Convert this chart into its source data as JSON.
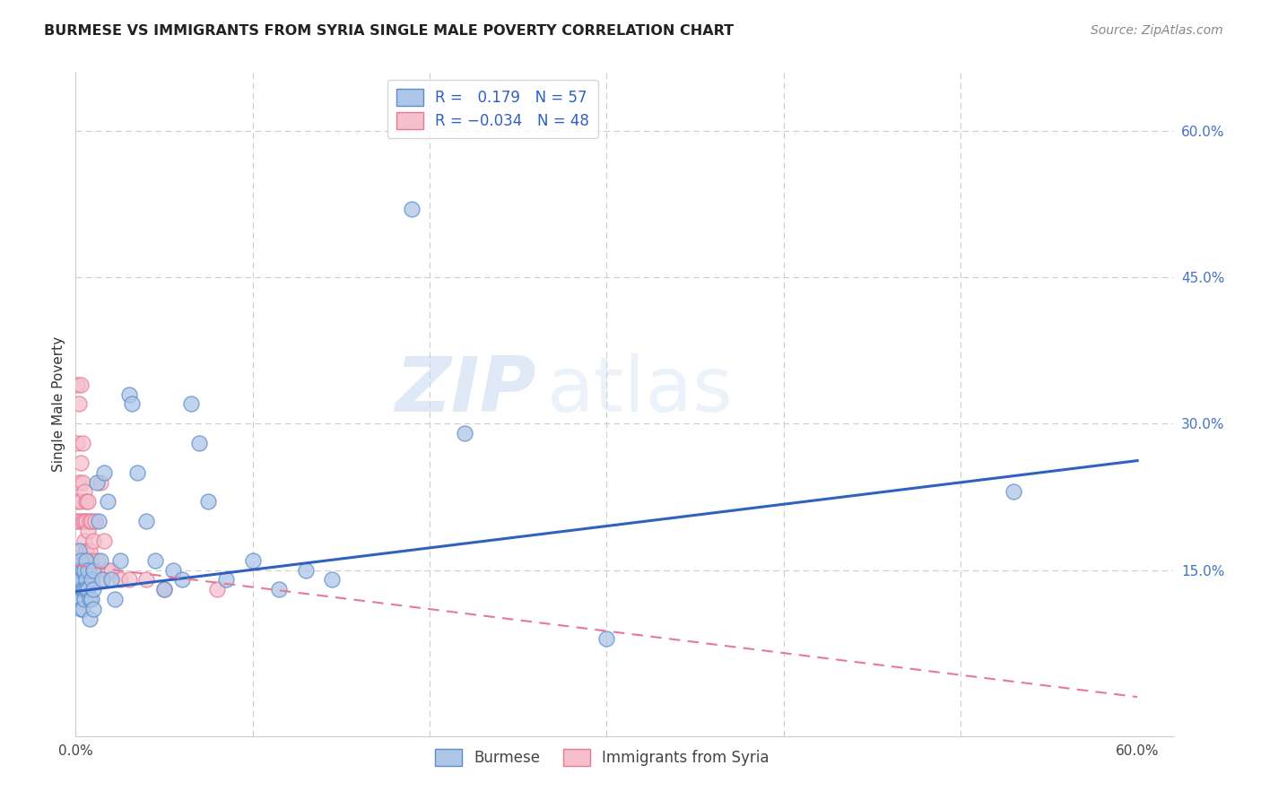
{
  "title": "BURMESE VS IMMIGRANTS FROM SYRIA SINGLE MALE POVERTY CORRELATION CHART",
  "source": "Source: ZipAtlas.com",
  "ylabel": "Single Male Poverty",
  "xlim": [
    0.0,
    0.62
  ],
  "ylim": [
    -0.02,
    0.66
  ],
  "yticks_right": [
    0.15,
    0.3,
    0.45,
    0.6
  ],
  "ytick_right_labels": [
    "15.0%",
    "30.0%",
    "45.0%",
    "60.0%"
  ],
  "burmese_color": "#aec6e8",
  "burmese_edge_color": "#5b8dc8",
  "syria_color": "#f5c0cc",
  "syria_edge_color": "#e87898",
  "burmese_line_color": "#3060c0",
  "syria_line_color": "#e87898",
  "R_burmese": 0.179,
  "N_burmese": 57,
  "R_syria": -0.034,
  "N_syria": 48,
  "legend_label_1": "Burmese",
  "legend_label_2": "Immigrants from Syria",
  "watermark_zip": "ZIP",
  "watermark_atlas": "atlas",
  "blue_line_x": [
    0.0,
    0.6
  ],
  "blue_line_y": [
    0.128,
    0.262
  ],
  "pink_line_x": [
    0.0,
    0.6
  ],
  "pink_line_y": [
    0.155,
    0.02
  ],
  "burmese_x": [
    0.001,
    0.001,
    0.001,
    0.002,
    0.002,
    0.002,
    0.003,
    0.003,
    0.003,
    0.003,
    0.004,
    0.004,
    0.004,
    0.005,
    0.005,
    0.005,
    0.006,
    0.006,
    0.006,
    0.007,
    0.007,
    0.008,
    0.008,
    0.009,
    0.009,
    0.01,
    0.01,
    0.01,
    0.012,
    0.013,
    0.014,
    0.015,
    0.016,
    0.018,
    0.02,
    0.022,
    0.025,
    0.03,
    0.032,
    0.035,
    0.04,
    0.045,
    0.05,
    0.055,
    0.06,
    0.065,
    0.07,
    0.075,
    0.085,
    0.1,
    0.115,
    0.13,
    0.145,
    0.19,
    0.22,
    0.3,
    0.53
  ],
  "burmese_y": [
    0.14,
    0.15,
    0.13,
    0.17,
    0.15,
    0.13,
    0.16,
    0.14,
    0.12,
    0.11,
    0.15,
    0.13,
    0.11,
    0.15,
    0.13,
    0.12,
    0.14,
    0.16,
    0.13,
    0.15,
    0.13,
    0.12,
    0.1,
    0.14,
    0.12,
    0.15,
    0.13,
    0.11,
    0.24,
    0.2,
    0.16,
    0.14,
    0.25,
    0.22,
    0.14,
    0.12,
    0.16,
    0.33,
    0.32,
    0.25,
    0.2,
    0.16,
    0.13,
    0.15,
    0.14,
    0.32,
    0.28,
    0.22,
    0.14,
    0.16,
    0.13,
    0.15,
    0.14,
    0.52,
    0.29,
    0.08,
    0.23
  ],
  "syria_x": [
    0.001,
    0.001,
    0.001,
    0.001,
    0.001,
    0.002,
    0.002,
    0.002,
    0.002,
    0.002,
    0.003,
    0.003,
    0.003,
    0.003,
    0.004,
    0.004,
    0.004,
    0.004,
    0.005,
    0.005,
    0.005,
    0.005,
    0.005,
    0.006,
    0.006,
    0.006,
    0.007,
    0.007,
    0.007,
    0.008,
    0.008,
    0.008,
    0.009,
    0.009,
    0.01,
    0.01,
    0.011,
    0.012,
    0.014,
    0.015,
    0.016,
    0.018,
    0.02,
    0.025,
    0.03,
    0.04,
    0.05,
    0.08
  ],
  "syria_y": [
    0.15,
    0.22,
    0.34,
    0.28,
    0.2,
    0.32,
    0.24,
    0.2,
    0.16,
    0.14,
    0.34,
    0.26,
    0.22,
    0.17,
    0.28,
    0.24,
    0.2,
    0.16,
    0.23,
    0.2,
    0.18,
    0.16,
    0.14,
    0.22,
    0.2,
    0.17,
    0.22,
    0.19,
    0.16,
    0.2,
    0.17,
    0.15,
    0.2,
    0.16,
    0.18,
    0.15,
    0.2,
    0.16,
    0.24,
    0.14,
    0.18,
    0.15,
    0.15,
    0.14,
    0.14,
    0.14,
    0.13,
    0.13
  ]
}
